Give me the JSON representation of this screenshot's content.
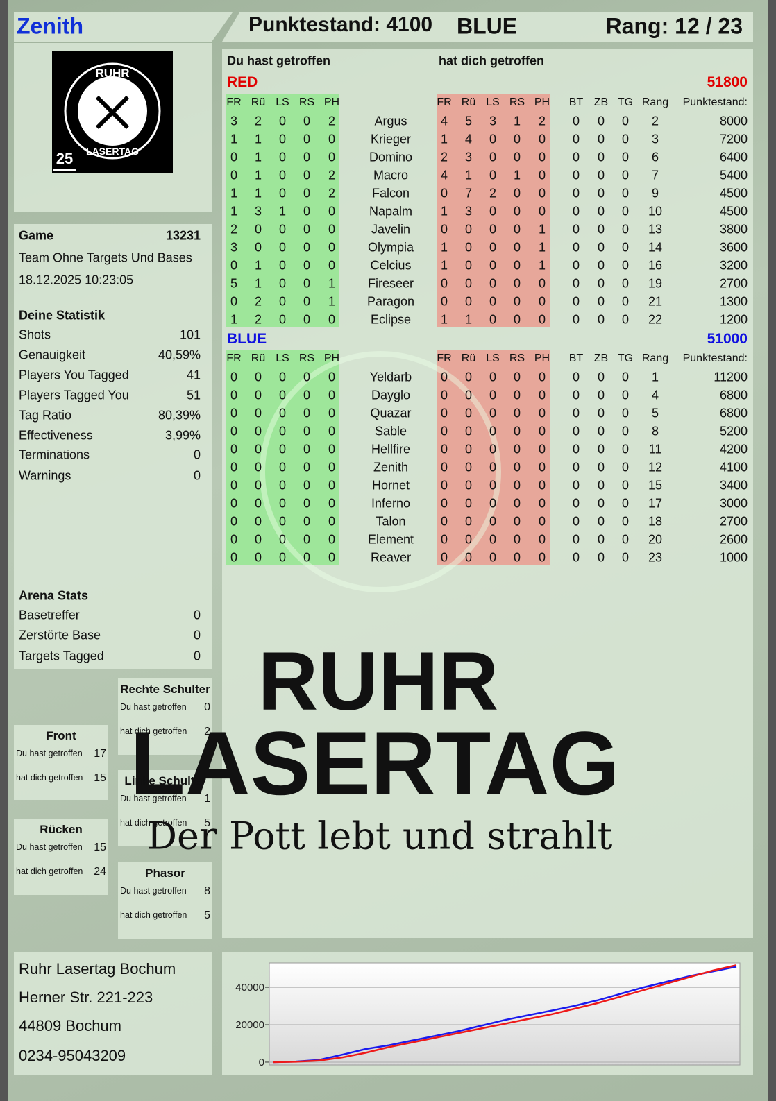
{
  "header": {
    "player": "Zenith",
    "score": "Punktestand: 4100",
    "team": "BLUE",
    "rank": "Rang: 12 / 23"
  },
  "logo": {
    "top": "RUHR",
    "bottom": "LASERTAG",
    "badge": "25"
  },
  "watermark": {
    "line1": "RUHR",
    "line2": "LASERTAG",
    "slogan": "Der Pott lebt und strahlt"
  },
  "game": {
    "label": "Game",
    "number": 13231,
    "mode": "Team Ohne Targets Und Bases",
    "date": "18.12.2025 10:23:05"
  },
  "statistics": {
    "title": "Deine Statistik",
    "rows": [
      [
        "Shots",
        101
      ],
      [
        "Genauigkeit",
        "40,59%"
      ],
      [
        "Players You Tagged",
        41
      ],
      [
        "Players Tagged You",
        51
      ],
      [
        "Tag Ratio",
        "80,39%"
      ],
      [
        "Effectiveness",
        "3,99%"
      ],
      [
        "Terminations",
        0
      ],
      [
        "Warnings",
        0
      ]
    ]
  },
  "arena": {
    "title": "Arena Stats",
    "rows": [
      [
        "Basetreffer",
        0
      ],
      [
        "Zerstörte Base",
        0
      ],
      [
        "Targets Tagged",
        0
      ]
    ]
  },
  "zones": [
    {
      "title": "Rechte Schulter",
      "rows": [
        [
          "Du hast getroffen",
          0
        ],
        [
          "hat dich getroffen",
          2
        ]
      ]
    },
    {
      "title": "Front",
      "rows": [
        [
          "Du hast getroffen",
          17
        ],
        [
          "hat dich getroffen",
          15
        ]
      ]
    },
    {
      "title": "Linke Schulter",
      "rows": [
        [
          "Du hast getroffen",
          1
        ],
        [
          "hat dich getroffen",
          5
        ]
      ]
    },
    {
      "title": "Rücken",
      "rows": [
        [
          "Du hast getroffen",
          15
        ],
        [
          "hat dich getroffen",
          24
        ]
      ]
    },
    {
      "title": "Phasor",
      "rows": [
        [
          "Du hast getroffen",
          8
        ],
        [
          "hat dich getroffen",
          5
        ]
      ]
    }
  ],
  "table": {
    "hit_heading": "Du hast getroffen",
    "got_heading": "hat dich getroffen",
    "teams": [
      {
        "name": "RED",
        "total": 51800,
        "color": "#e00000",
        "hit_columns": [
          "FR",
          "Rü",
          "LS",
          "RS",
          "PH"
        ],
        "got_columns": [
          "FR",
          "Rü",
          "LS",
          "RS",
          "PH"
        ],
        "stat_columns": [
          "BT",
          "ZB",
          "TG",
          "Rang",
          "Punktestand:"
        ],
        "rows": [
          {
            "name": "Argus",
            "hit": [
              3,
              2,
              0,
              0,
              2
            ],
            "got": [
              4,
              5,
              3,
              1,
              2
            ],
            "stats": [
              0,
              0,
              0,
              2,
              8000
            ]
          },
          {
            "name": "Krieger",
            "hit": [
              1,
              1,
              0,
              0,
              0
            ],
            "got": [
              1,
              4,
              0,
              0,
              0
            ],
            "stats": [
              0,
              0,
              0,
              3,
              7200
            ]
          },
          {
            "name": "Domino",
            "hit": [
              0,
              1,
              0,
              0,
              0
            ],
            "got": [
              2,
              3,
              0,
              0,
              0
            ],
            "stats": [
              0,
              0,
              0,
              6,
              6400
            ]
          },
          {
            "name": "Macro",
            "hit": [
              0,
              1,
              0,
              0,
              2
            ],
            "got": [
              4,
              1,
              0,
              1,
              0
            ],
            "stats": [
              0,
              0,
              0,
              7,
              5400
            ]
          },
          {
            "name": "Falcon",
            "hit": [
              1,
              1,
              0,
              0,
              2
            ],
            "got": [
              0,
              7,
              2,
              0,
              0
            ],
            "stats": [
              0,
              0,
              0,
              9,
              4500
            ]
          },
          {
            "name": "Napalm",
            "hit": [
              1,
              3,
              1,
              0,
              0
            ],
            "got": [
              1,
              3,
              0,
              0,
              0
            ],
            "stats": [
              0,
              0,
              0,
              10,
              4500
            ]
          },
          {
            "name": "Javelin",
            "hit": [
              2,
              0,
              0,
              0,
              0
            ],
            "got": [
              0,
              0,
              0,
              0,
              1
            ],
            "stats": [
              0,
              0,
              0,
              13,
              3800
            ]
          },
          {
            "name": "Olympia",
            "hit": [
              3,
              0,
              0,
              0,
              0
            ],
            "got": [
              1,
              0,
              0,
              0,
              1
            ],
            "stats": [
              0,
              0,
              0,
              14,
              3600
            ]
          },
          {
            "name": "Celcius",
            "hit": [
              0,
              1,
              0,
              0,
              0
            ],
            "got": [
              1,
              0,
              0,
              0,
              1
            ],
            "stats": [
              0,
              0,
              0,
              16,
              3200
            ]
          },
          {
            "name": "Fireseer",
            "hit": [
              5,
              1,
              0,
              0,
              1
            ],
            "got": [
              0,
              0,
              0,
              0,
              0
            ],
            "stats": [
              0,
              0,
              0,
              19,
              2700
            ]
          },
          {
            "name": "Paragon",
            "hit": [
              0,
              2,
              0,
              0,
              1
            ],
            "got": [
              0,
              0,
              0,
              0,
              0
            ],
            "stats": [
              0,
              0,
              0,
              21,
              1300
            ]
          },
          {
            "name": "Eclipse",
            "hit": [
              1,
              2,
              0,
              0,
              0
            ],
            "got": [
              1,
              1,
              0,
              0,
              0
            ],
            "stats": [
              0,
              0,
              0,
              22,
              1200
            ]
          }
        ]
      },
      {
        "name": "BLUE",
        "total": 51000,
        "color": "#1010e0",
        "hit_columns": [
          "FR",
          "Rü",
          "LS",
          "RS",
          "PH"
        ],
        "got_columns": [
          "FR",
          "Rü",
          "LS",
          "RS",
          "PH"
        ],
        "stat_columns": [
          "BT",
          "ZB",
          "TG",
          "Rang",
          "Punktestand:"
        ],
        "rows": [
          {
            "name": "Yeldarb",
            "hit": [
              0,
              0,
              0,
              0,
              0
            ],
            "got": [
              0,
              0,
              0,
              0,
              0
            ],
            "stats": [
              0,
              0,
              0,
              1,
              11200
            ]
          },
          {
            "name": "Dayglo",
            "hit": [
              0,
              0,
              0,
              0,
              0
            ],
            "got": [
              0,
              0,
              0,
              0,
              0
            ],
            "stats": [
              0,
              0,
              0,
              4,
              6800
            ]
          },
          {
            "name": "Quazar",
            "hit": [
              0,
              0,
              0,
              0,
              0
            ],
            "got": [
              0,
              0,
              0,
              0,
              0
            ],
            "stats": [
              0,
              0,
              0,
              5,
              6800
            ]
          },
          {
            "name": "Sable",
            "hit": [
              0,
              0,
              0,
              0,
              0
            ],
            "got": [
              0,
              0,
              0,
              0,
              0
            ],
            "stats": [
              0,
              0,
              0,
              8,
              5200
            ]
          },
          {
            "name": "Hellfire",
            "hit": [
              0,
              0,
              0,
              0,
              0
            ],
            "got": [
              0,
              0,
              0,
              0,
              0
            ],
            "stats": [
              0,
              0,
              0,
              11,
              4200
            ]
          },
          {
            "name": "Zenith",
            "hit": [
              0,
              0,
              0,
              0,
              0
            ],
            "got": [
              0,
              0,
              0,
              0,
              0
            ],
            "stats": [
              0,
              0,
              0,
              12,
              4100
            ]
          },
          {
            "name": "Hornet",
            "hit": [
              0,
              0,
              0,
              0,
              0
            ],
            "got": [
              0,
              0,
              0,
              0,
              0
            ],
            "stats": [
              0,
              0,
              0,
              15,
              3400
            ]
          },
          {
            "name": "Inferno",
            "hit": [
              0,
              0,
              0,
              0,
              0
            ],
            "got": [
              0,
              0,
              0,
              0,
              0
            ],
            "stats": [
              0,
              0,
              0,
              17,
              3000
            ]
          },
          {
            "name": "Talon",
            "hit": [
              0,
              0,
              0,
              0,
              0
            ],
            "got": [
              0,
              0,
              0,
              0,
              0
            ],
            "stats": [
              0,
              0,
              0,
              18,
              2700
            ]
          },
          {
            "name": "Element",
            "hit": [
              0,
              0,
              0,
              0,
              0
            ],
            "got": [
              0,
              0,
              0,
              0,
              0
            ],
            "stats": [
              0,
              0,
              0,
              20,
              2600
            ]
          },
          {
            "name": "Reaver",
            "hit": [
              0,
              0,
              0,
              0,
              0
            ],
            "got": [
              0,
              0,
              0,
              0,
              0
            ],
            "stats": [
              0,
              0,
              0,
              23,
              1000
            ]
          }
        ]
      }
    ]
  },
  "address": [
    "Ruhr Lasertag Bochum",
    "Herner Str. 221-223",
    "44809 Bochum",
    "0234-95043209"
  ],
  "chart_data": {
    "type": "line",
    "ylim": [
      -1500,
      53000
    ],
    "yticks": [
      0,
      20000,
      40000
    ],
    "grid": true,
    "series": [
      {
        "color": "#1a1aee",
        "values": [
          0,
          300,
          1200,
          4000,
          7000,
          9000,
          11500,
          14000,
          16500,
          19500,
          22500,
          25000,
          27500,
          30000,
          33000,
          36500,
          40000,
          43000,
          46000,
          48500,
          51000
        ]
      },
      {
        "color": "#ee1a1a",
        "values": [
          0,
          200,
          800,
          2500,
          5000,
          8000,
          10500,
          13000,
          15500,
          18000,
          20500,
          23000,
          25500,
          28500,
          31500,
          35000,
          38500,
          42000,
          45500,
          49000,
          51800
        ]
      }
    ]
  }
}
